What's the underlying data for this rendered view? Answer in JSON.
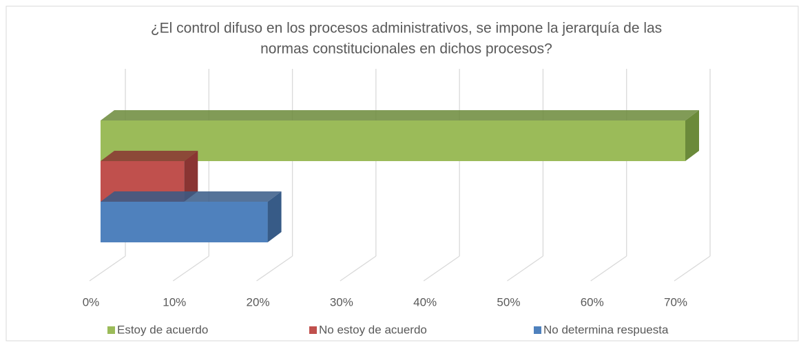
{
  "chart_data": {
    "type": "bar3d_horizontal",
    "title": [
      "¿El control difuso en los procesos administrativos, se impone la jerarquía de las",
      "normas constitucionales en dichos procesos?"
    ],
    "categories": [
      null
    ],
    "series": [
      {
        "name": "Estoy de acuerdo",
        "color": "#9bbb59",
        "side": "#6b8a3a",
        "values": [
          70
        ]
      },
      {
        "name": "No  estoy de acuerdo",
        "color": "#c0504d",
        "side": "#8a3533",
        "values": [
          10
        ]
      },
      {
        "name": "No determina respuesta",
        "color": "#4f81bd",
        "side": "#375b87",
        "values": [
          20
        ]
      }
    ],
    "xlim": [
      0,
      70
    ],
    "xticks": [
      {
        "value": 0,
        "label": "0%"
      },
      {
        "value": 10,
        "label": "10%"
      },
      {
        "value": 20,
        "label": "20%"
      },
      {
        "value": 30,
        "label": "30%"
      },
      {
        "value": 40,
        "label": "40%"
      },
      {
        "value": 50,
        "label": "50%"
      },
      {
        "value": 60,
        "label": "60%"
      },
      {
        "value": 70,
        "label": "70%"
      }
    ],
    "grid": true,
    "legend": "bottom"
  }
}
